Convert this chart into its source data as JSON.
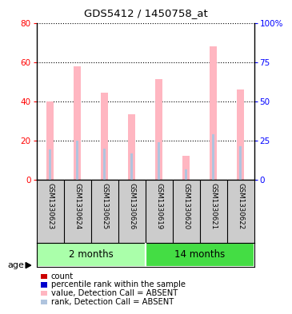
{
  "title": "GDS5412 / 1450758_at",
  "samples": [
    "GSM1330623",
    "GSM1330624",
    "GSM1330625",
    "GSM1330626",
    "GSM1330619",
    "GSM1330620",
    "GSM1330621",
    "GSM1330622"
  ],
  "groups": [
    {
      "name": "2 months",
      "indices": [
        0,
        1,
        2,
        3
      ],
      "color": "#AAFFAA"
    },
    {
      "name": "14 months",
      "indices": [
        4,
        5,
        6,
        7
      ],
      "color": "#44DD44"
    }
  ],
  "value_absent": [
    40.0,
    58.0,
    44.5,
    33.5,
    51.5,
    12.5,
    68.5,
    46.5
  ],
  "rank_absent": [
    15.5,
    20.0,
    16.0,
    13.5,
    19.5,
    5.5,
    23.5,
    17.5
  ],
  "left_ylim": [
    0,
    80
  ],
  "right_ylim": [
    0,
    100
  ],
  "left_yticks": [
    0,
    20,
    40,
    60,
    80
  ],
  "right_yticks": [
    0,
    25,
    50,
    75,
    100
  ],
  "right_yticklabels": [
    "0",
    "25",
    "50",
    "75",
    "100%"
  ],
  "absent_value_color": "#FFB6C1",
  "absent_rank_color": "#B0C4DE",
  "count_color": "#CC0000",
  "percentile_color": "#0000CC",
  "sample_bg": "#CCCCCC",
  "age_label": "age",
  "legend_items": [
    {
      "color": "#CC0000",
      "label": "count"
    },
    {
      "color": "#0000CC",
      "label": "percentile rank within the sample"
    },
    {
      "color": "#FFB6C1",
      "label": "value, Detection Call = ABSENT"
    },
    {
      "color": "#B0C4DE",
      "label": "rank, Detection Call = ABSENT"
    }
  ],
  "value_bar_width": 0.25,
  "rank_bar_width": 0.1
}
